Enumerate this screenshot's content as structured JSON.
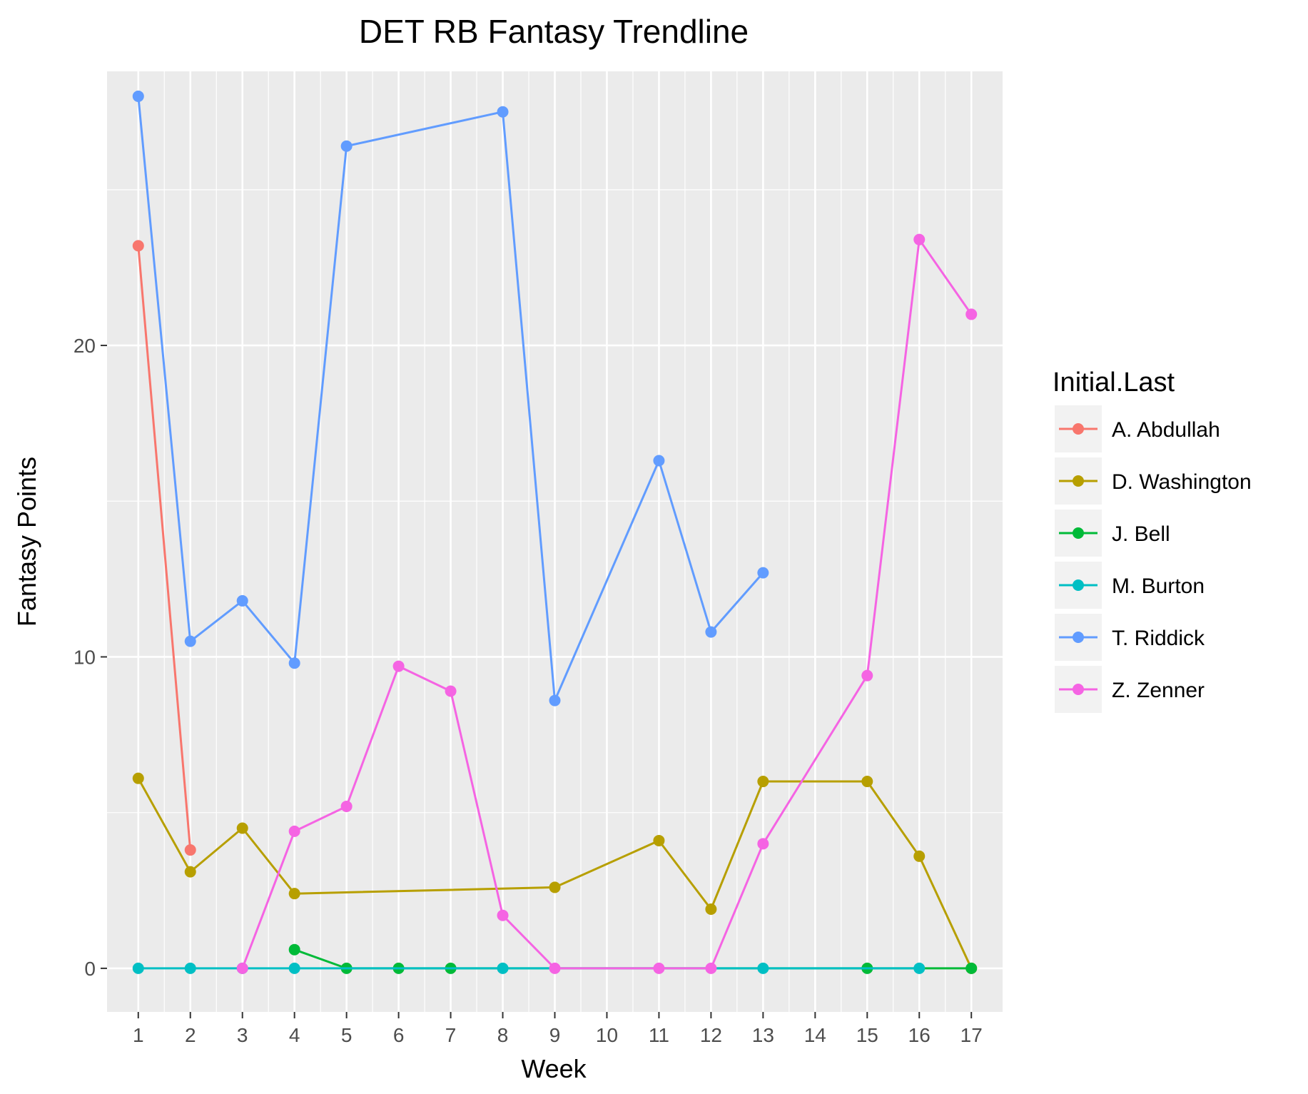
{
  "chart_data": {
    "type": "line",
    "title": "DET RB Fantasy Trendline",
    "xlabel": "Week",
    "ylabel": "Fantasy Points",
    "categories": [
      "1",
      "2",
      "3",
      "4",
      "5",
      "6",
      "7",
      "8",
      "9",
      "10",
      "11",
      "12",
      "13",
      "14",
      "15",
      "16",
      "17"
    ],
    "x_scale": "discrete",
    "ylim": [
      -1.4,
      28.8
    ],
    "yticks": [
      0,
      10,
      20
    ],
    "grid": true,
    "legend": {
      "title": "Initial.Last",
      "position": "right"
    },
    "series": [
      {
        "name": "A. Abdullah",
        "color": "#F8766D",
        "points": [
          [
            "1",
            23.2
          ],
          [
            "2",
            3.8
          ]
        ]
      },
      {
        "name": "D. Washington",
        "color": "#B79F00",
        "points": [
          [
            "1",
            6.1
          ],
          [
            "2",
            3.1
          ],
          [
            "3",
            4.5
          ],
          [
            "4",
            2.4
          ],
          [
            "9",
            2.6
          ],
          [
            "11",
            4.1
          ],
          [
            "12",
            1.9
          ],
          [
            "13",
            6.0
          ],
          [
            "15",
            6.0
          ],
          [
            "16",
            3.6
          ],
          [
            "17",
            0
          ]
        ]
      },
      {
        "name": "J. Bell",
        "color": "#00BA38",
        "points": [
          [
            "4",
            0.6
          ],
          [
            "5",
            0
          ],
          [
            "6",
            0
          ],
          [
            "7",
            0
          ],
          [
            "15",
            0
          ],
          [
            "17",
            0
          ]
        ]
      },
      {
        "name": "M. Burton",
        "color": "#00BFC4",
        "points": [
          [
            "1",
            0
          ],
          [
            "2",
            0
          ],
          [
            "3",
            0
          ],
          [
            "4",
            0
          ],
          [
            "8",
            0
          ],
          [
            "13",
            0
          ],
          [
            "16",
            0
          ]
        ]
      },
      {
        "name": "T. Riddick",
        "color": "#619CFF",
        "points": [
          [
            "1",
            28.0
          ],
          [
            "2",
            10.5
          ],
          [
            "3",
            11.8
          ],
          [
            "4",
            9.8
          ],
          [
            "5",
            26.4
          ],
          [
            "8",
            27.5
          ],
          [
            "9",
            8.6
          ],
          [
            "11",
            16.3
          ],
          [
            "12",
            10.8
          ],
          [
            "13",
            12.7
          ]
        ]
      },
      {
        "name": "Z. Zenner",
        "color": "#F564E3",
        "points": [
          [
            "3",
            0
          ],
          [
            "4",
            4.4
          ],
          [
            "5",
            5.2
          ],
          [
            "6",
            9.7
          ],
          [
            "7",
            8.9
          ],
          [
            "8",
            1.7
          ],
          [
            "9",
            0
          ],
          [
            "11",
            0
          ],
          [
            "12",
            0
          ],
          [
            "13",
            4.0
          ],
          [
            "15",
            9.4
          ],
          [
            "16",
            23.4
          ],
          [
            "17",
            21.0
          ]
        ]
      }
    ]
  }
}
